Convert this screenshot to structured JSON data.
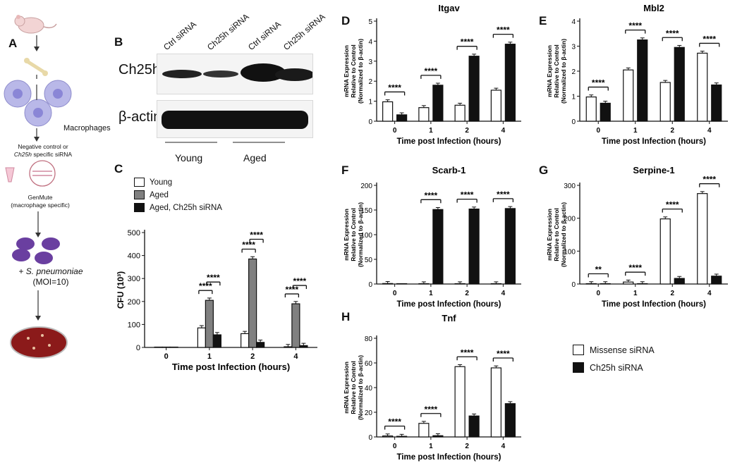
{
  "panel_letters": {
    "A": "A",
    "B": "B",
    "C": "C",
    "D": "D",
    "E": "E",
    "F": "F",
    "G": "G",
    "H": "H"
  },
  "schematic": {
    "macrophages_label": "Macrophages",
    "sirna_line1": "Negative control or",
    "sirna_line2_italic": "Ch25h",
    "sirna_line2_rest": " specific siRNA",
    "genmute_line1": "GenMute",
    "genmute_line2": "(macrophage specific)",
    "pathogen_prefix": "+ ",
    "pathogen_italic": "S. pneumoniae",
    "moi": "(MOI=10)"
  },
  "blot": {
    "lanes": [
      "Ctrl siRNA",
      "Ch25h siRNA",
      "Ctrl siRNA",
      "Ch25h siRNA"
    ],
    "row1": "Ch25h",
    "row2": "β-actin",
    "groups": [
      "Young",
      "Aged"
    ]
  },
  "chart_data": [
    {
      "id": "C",
      "type": "bar",
      "title": "",
      "xlabel": "Time post Infection (hours)",
      "ylabel": "CFU (10³)",
      "categories": [
        "0",
        "1",
        "2",
        "4"
      ],
      "ylim": [
        0,
        500
      ],
      "yticks": [
        0,
        100,
        200,
        300,
        400,
        500
      ],
      "legend": [
        "Young",
        "Aged",
        "Aged, Ch25h siRNA"
      ],
      "series": [
        {
          "name": "Young",
          "values": [
            0,
            85,
            60,
            3
          ],
          "color": "#ffffff"
        },
        {
          "name": "Aged",
          "values": [
            0,
            205,
            385,
            190
          ],
          "color": "#808080"
        },
        {
          "name": "Aged, Ch25h siRNA",
          "values": [
            0,
            55,
            22,
            8
          ],
          "color": "#111111"
        }
      ],
      "significance": [
        {
          "cat": 1,
          "from": 0,
          "to": 1,
          "label": "****"
        },
        {
          "cat": 1,
          "from": 1,
          "to": 2,
          "label": "****"
        },
        {
          "cat": 2,
          "from": 0,
          "to": 1,
          "label": "****"
        },
        {
          "cat": 2,
          "from": 1,
          "to": 2,
          "label": "****"
        },
        {
          "cat": 3,
          "from": 0,
          "to": 1,
          "label": "****"
        },
        {
          "cat": 3,
          "from": 1,
          "to": 2,
          "label": "****"
        }
      ]
    },
    {
      "id": "D",
      "type": "bar",
      "title": "Itgav",
      "xlabel": "Time post Infection (hours)",
      "ylabel": [
        "mRNA Expression",
        "Relative to Control",
        "(Normalized to β-actin)"
      ],
      "categories": [
        "0",
        "1",
        "2",
        "4"
      ],
      "ylim": [
        0,
        5
      ],
      "yticks": [
        0,
        1,
        2,
        3,
        4,
        5
      ],
      "series": [
        {
          "name": "Missense siRNA",
          "values": [
            0.97,
            0.68,
            0.8,
            1.55
          ],
          "color": "#ffffff"
        },
        {
          "name": "Ch25h siRNA",
          "values": [
            0.32,
            1.8,
            3.25,
            3.85
          ],
          "color": "#111111"
        }
      ],
      "significance": [
        {
          "cat": 0,
          "label": "****"
        },
        {
          "cat": 1,
          "label": "****"
        },
        {
          "cat": 2,
          "label": "****"
        },
        {
          "cat": 3,
          "label": "****"
        }
      ]
    },
    {
      "id": "E",
      "type": "bar",
      "title": "Mbl2",
      "xlabel": "Time post Infection (hours)",
      "ylabel": [
        "mRNA Expression",
        "Relative to Control",
        "(Normalized to β-actin)"
      ],
      "categories": [
        "0",
        "1",
        "2",
        "4"
      ],
      "ylim": [
        0,
        4
      ],
      "yticks": [
        0,
        1,
        2,
        3,
        4
      ],
      "series": [
        {
          "name": "Missense siRNA",
          "values": [
            0.97,
            2.05,
            1.55,
            2.72
          ],
          "color": "#ffffff"
        },
        {
          "name": "Ch25h siRNA",
          "values": [
            0.72,
            3.25,
            2.95,
            1.45
          ],
          "color": "#111111"
        }
      ],
      "significance": [
        {
          "cat": 0,
          "label": "****"
        },
        {
          "cat": 1,
          "label": "****"
        },
        {
          "cat": 2,
          "label": "****"
        },
        {
          "cat": 3,
          "label": "****"
        }
      ]
    },
    {
      "id": "F",
      "type": "bar",
      "title": "Scarb-1",
      "xlabel": "Time post Infection (hours)",
      "ylabel": [
        "mRNA Expression",
        "Relative to Control",
        "(Normalized to β-actin)"
      ],
      "categories": [
        "0",
        "1",
        "2",
        "4"
      ],
      "ylim": [
        0,
        200
      ],
      "yticks": [
        0,
        50,
        100,
        150,
        200
      ],
      "series": [
        {
          "name": "Missense siRNA",
          "values": [
            1,
            0.4,
            0.4,
            0.4
          ],
          "color": "#ffffff"
        },
        {
          "name": "Ch25h siRNA",
          "values": [
            0,
            151,
            152,
            153
          ],
          "color": "#111111"
        }
      ],
      "significance": [
        {
          "cat": 1,
          "label": "****"
        },
        {
          "cat": 2,
          "label": "****"
        },
        {
          "cat": 3,
          "label": "****"
        }
      ]
    },
    {
      "id": "G",
      "type": "bar",
      "title": "Serpine-1",
      "xlabel": "Time post Infection (hours)",
      "ylabel": [
        "mRNA Expression",
        "Relative to Control",
        "(Normalized to β-actin)"
      ],
      "categories": [
        "0",
        "1",
        "2",
        "4"
      ],
      "ylim": [
        0,
        300
      ],
      "yticks": [
        0,
        100,
        200,
        300
      ],
      "series": [
        {
          "name": "Missense siRNA",
          "values": [
            1,
            6,
            198,
            275
          ],
          "color": "#ffffff"
        },
        {
          "name": "Ch25h siRNA",
          "values": [
            1,
            1,
            17,
            24
          ],
          "color": "#111111"
        }
      ],
      "significance": [
        {
          "cat": 0,
          "label": "**"
        },
        {
          "cat": 1,
          "label": "****"
        },
        {
          "cat": 2,
          "label": "****"
        },
        {
          "cat": 3,
          "label": "****"
        }
      ]
    },
    {
      "id": "H",
      "type": "bar",
      "title": "Tnf",
      "xlabel": "Time post Infection (hours)",
      "ylabel": [
        "mRNA Expression",
        "Relative to Control",
        "(Normalized to β-actin)"
      ],
      "categories": [
        "0",
        "1",
        "2",
        "4"
      ],
      "ylim": [
        0,
        80
      ],
      "yticks": [
        0,
        20,
        40,
        60,
        80
      ],
      "legend": [
        "Missense siRNA",
        "Ch25h siRNA"
      ],
      "series": [
        {
          "name": "Missense siRNA",
          "values": [
            0.8,
            11,
            57,
            56
          ],
          "color": "#ffffff"
        },
        {
          "name": "Ch25h siRNA",
          "values": [
            0.5,
            1,
            17,
            27
          ],
          "color": "#111111"
        }
      ],
      "significance": [
        {
          "cat": 0,
          "label": "****"
        },
        {
          "cat": 1,
          "label": "****"
        },
        {
          "cat": 2,
          "label": "****"
        },
        {
          "cat": 3,
          "label": "****"
        }
      ]
    }
  ]
}
